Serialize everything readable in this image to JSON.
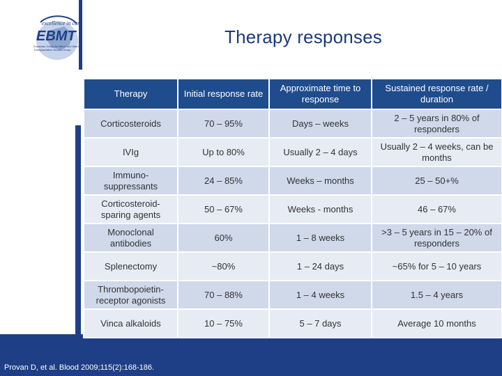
{
  "slide": {
    "title": "Therapy responses",
    "citation": "Provan D, et al. Blood 2009;115(2):168-186."
  },
  "logo": {
    "tagline": "excellence in care",
    "name": "EBMT",
    "subtitle_line1": "European Group for Blood and Marrow",
    "subtitle_line2": "Transplantation Nurses Group"
  },
  "table": {
    "headers": [
      "Therapy",
      "Initial response rate",
      "Approximate time to response",
      "Sustained response rate / duration"
    ],
    "rows": [
      [
        "Corticosteroids",
        "70 – 95%",
        "Days – weeks",
        "2 – 5 years in 80% of responders"
      ],
      [
        "IVIg",
        "Up to 80%",
        "Usually 2 – 4 days",
        "Usually 2 – 4 weeks, can be months"
      ],
      [
        "Immuno-suppressants",
        "24 – 85%",
        "Weeks – months",
        "25 – 50+%"
      ],
      [
        "Corticosteroid-sparing agents",
        "50 – 67%",
        "Weeks - months",
        "46 – 67%"
      ],
      [
        "Monoclonal antibodies",
        "60%",
        "1 – 8 weeks",
        ">3 – 5 years in 15 – 20% of responders"
      ],
      [
        "Splenectomy",
        "~80%",
        "1 – 24 days",
        "~65% for 5 – 10 years"
      ],
      [
        "Thrombopoietin-receptor agonists",
        "70 – 88%",
        "1 – 4 weeks",
        "1.5 – 4 years"
      ],
      [
        "Vinca alkaloids",
        "10 – 75%",
        "5 – 7 days",
        "Average 10 months"
      ]
    ]
  },
  "colors": {
    "brand_blue": "#1e3f86",
    "header_blue": "#1f4c8c",
    "row_light": "#e6ebf4",
    "row_mid": "#cfd9ea"
  }
}
